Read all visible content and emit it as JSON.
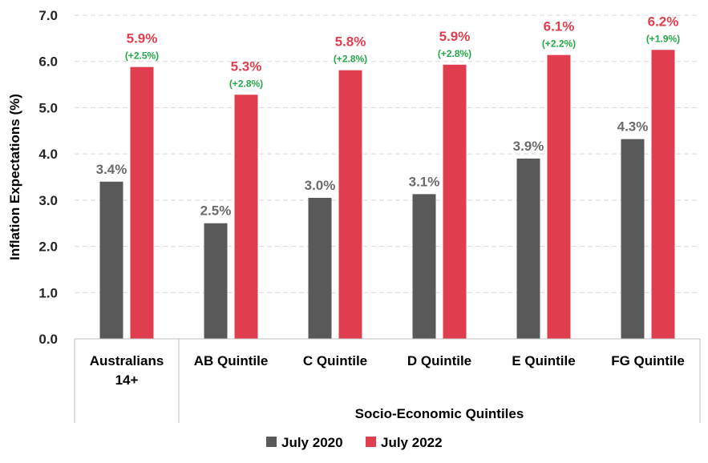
{
  "chart_data": {
    "type": "bar",
    "ylabel": "Inflation Expectations (%)",
    "ylim": [
      0,
      7
    ],
    "yticks": [
      "0.0",
      "1.0",
      "2.0",
      "3.0",
      "4.0",
      "5.0",
      "6.0",
      "7.0"
    ],
    "grid": true,
    "legend_position": "bottom",
    "group_label": "Socio-Economic Quintiles",
    "categories": [
      {
        "line1": "Australians",
        "line2": "14+"
      },
      {
        "line1": "AB Quintile",
        "line2": ""
      },
      {
        "line1": "C Quintile",
        "line2": ""
      },
      {
        "line1": "D Quintile",
        "line2": ""
      },
      {
        "line1": "E Quintile",
        "line2": ""
      },
      {
        "line1": "FG Quintile",
        "line2": ""
      }
    ],
    "series": [
      {
        "name": "July 2020",
        "color": "#595959",
        "values": [
          3.4,
          2.5,
          3.05,
          3.13,
          3.9,
          4.32
        ],
        "labels": [
          "3.4%",
          "2.5%",
          "3.0%",
          "3.1%",
          "3.9%",
          "4.3%"
        ]
      },
      {
        "name": "July 2022",
        "color": "#e03e4f",
        "values": [
          5.88,
          5.28,
          5.81,
          5.93,
          6.14,
          6.25
        ],
        "labels": [
          "5.9%",
          "5.3%",
          "5.8%",
          "5.9%",
          "6.1%",
          "6.2%"
        ],
        "changes": [
          "(+2.5%)",
          "(+2.8%)",
          "(+2.8%)",
          "(+2.8%)",
          "(+2.2%)",
          "(+1.9%)"
        ]
      }
    ]
  }
}
